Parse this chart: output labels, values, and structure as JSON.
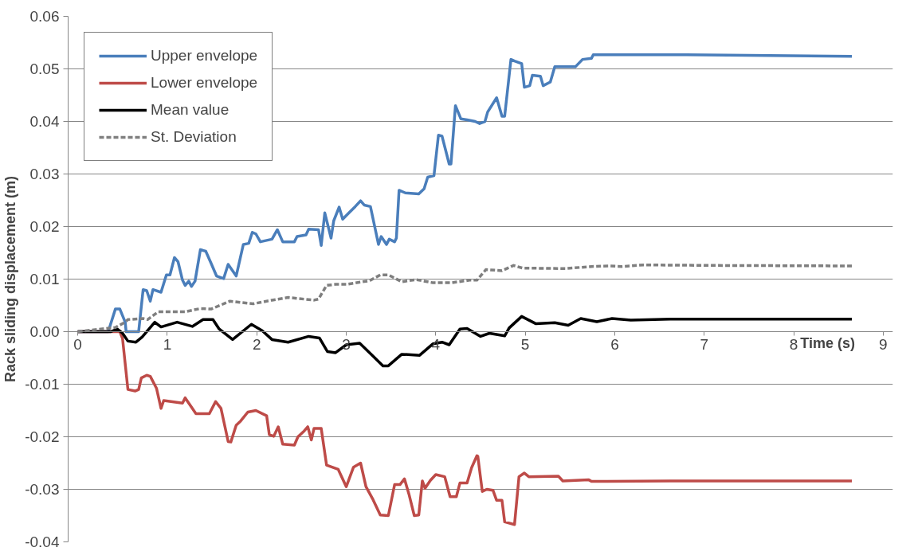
{
  "chart_data": {
    "type": "line",
    "xlabel": "Time (s)",
    "ylabel": "Rack sliding displacement (m)",
    "xlim": [
      0,
      9
    ],
    "xticks": [
      0,
      1,
      2,
      3,
      4,
      5,
      6,
      7,
      8,
      9
    ],
    "ylim": [
      -0.04,
      0.06
    ],
    "yticks": [
      {
        "value": -0.04,
        "label": "-0.04"
      },
      {
        "value": -0.03,
        "label": "-0.03"
      },
      {
        "value": -0.02,
        "label": "-0.02"
      },
      {
        "value": -0.01,
        "label": "-0.01"
      },
      {
        "value": 0,
        "label": "0.00"
      },
      {
        "value": 0.01,
        "label": "0.01"
      },
      {
        "value": 0.02,
        "label": "0.02"
      },
      {
        "value": 0.03,
        "label": "0.03"
      },
      {
        "value": 0.04,
        "label": "0.04"
      },
      {
        "value": 0.05,
        "label": "0.05"
      },
      {
        "value": 0.06,
        "label": "0.06"
      }
    ],
    "grid": "y",
    "legend": "top left",
    "marker": "none",
    "series": [
      {
        "name": "Upper envelope",
        "color": "#4a7ebb",
        "line_style": "solid",
        "x": [
          0,
          0.34,
          0.42,
          0.47,
          0.53,
          0.54,
          0.68,
          0.73,
          0.77,
          0.81,
          0.84,
          0.93,
          0.99,
          1.03,
          1.08,
          1.12,
          1.17,
          1.2,
          1.24,
          1.27,
          1.31,
          1.37,
          1.43,
          1.49,
          1.55,
          1.63,
          1.68,
          1.77,
          1.85,
          1.91,
          1.95,
          1.99,
          2.04,
          2.17,
          2.23,
          2.29,
          2.42,
          2.45,
          2.55,
          2.58,
          2.69,
          2.72,
          2.76,
          2.83,
          2.86,
          2.92,
          2.96,
          3.03,
          3.1,
          3.16,
          3.2,
          3.27,
          3.36,
          3.39,
          3.45,
          3.48,
          3.54,
          3.56,
          3.59,
          3.66,
          3.81,
          3.87,
          3.91,
          3.98,
          4.03,
          4.07,
          4.15,
          4.17,
          4.22,
          4.28,
          4.35,
          4.44,
          4.49,
          4.55,
          4.58,
          4.68,
          4.74,
          4.77,
          4.84,
          4.88,
          4.96,
          4.99,
          5.05,
          5.08,
          5.17,
          5.2,
          5.28,
          5.33,
          5.56,
          5.64,
          5.74,
          5.76,
          6.8,
          8.65
        ],
        "values": [
          0,
          0,
          0.0043,
          0.0043,
          0.0018,
          0,
          0,
          0.008,
          0.0078,
          0.0058,
          0.008,
          0.0075,
          0.0108,
          0.0108,
          0.0141,
          0.0133,
          0.0098,
          0.0088,
          0.0096,
          0.0086,
          0.0096,
          0.0156,
          0.0153,
          0.013,
          0.0106,
          0.0101,
          0.0128,
          0.0106,
          0.0166,
          0.0168,
          0.0189,
          0.0186,
          0.0171,
          0.0176,
          0.0194,
          0.0171,
          0.0171,
          0.0181,
          0.0184,
          0.0195,
          0.0194,
          0.0164,
          0.0226,
          0.0178,
          0.0211,
          0.0237,
          0.0214,
          0.0226,
          0.0238,
          0.0249,
          0.0241,
          0.0238,
          0.0166,
          0.0181,
          0.0166,
          0.0176,
          0.0171,
          0.0178,
          0.0269,
          0.0264,
          0.0262,
          0.0272,
          0.0294,
          0.0297,
          0.0374,
          0.0372,
          0.0319,
          0.0319,
          0.043,
          0.0405,
          0.0403,
          0.04,
          0.0396,
          0.04,
          0.0418,
          0.0445,
          0.041,
          0.041,
          0.0518,
          0.0515,
          0.051,
          0.0465,
          0.0468,
          0.0488,
          0.0486,
          0.0468,
          0.0475,
          0.0504,
          0.0504,
          0.0518,
          0.052,
          0.0527,
          0.0527,
          0.0524
        ]
      },
      {
        "name": "Lower envelope",
        "color": "#be4b48",
        "line_style": "solid",
        "x": [
          0,
          0.37,
          0.47,
          0.5,
          0.56,
          0.64,
          0.68,
          0.71,
          0.77,
          0.81,
          0.88,
          0.93,
          0.96,
          1.17,
          1.2,
          1.32,
          1.47,
          1.54,
          1.6,
          1.68,
          1.71,
          1.77,
          1.82,
          1.9,
          1.99,
          2.11,
          2.14,
          2.19,
          2.24,
          2.29,
          2.42,
          2.46,
          2.53,
          2.57,
          2.61,
          2.64,
          2.72,
          2.78,
          2.91,
          3.0,
          3.08,
          3.16,
          3.22,
          3.3,
          3.38,
          3.47,
          3.54,
          3.6,
          3.65,
          3.7,
          3.76,
          3.81,
          3.85,
          3.88,
          3.94,
          4.0,
          4.1,
          4.16,
          4.23,
          4.27,
          4.35,
          4.4,
          4.46,
          4.47,
          4.52,
          4.57,
          4.64,
          4.68,
          4.74,
          4.77,
          4.88,
          4.93,
          4.99,
          5.04,
          5.37,
          5.42,
          5.71,
          5.74,
          6.62,
          8.65
        ],
        "values": [
          0,
          0,
          0,
          -0.0013,
          -0.011,
          -0.0113,
          -0.011,
          -0.0088,
          -0.0083,
          -0.0085,
          -0.0108,
          -0.0146,
          -0.0131,
          -0.0136,
          -0.0126,
          -0.0156,
          -0.0156,
          -0.0133,
          -0.0146,
          -0.0209,
          -0.021,
          -0.0178,
          -0.017,
          -0.0153,
          -0.015,
          -0.016,
          -0.0196,
          -0.0199,
          -0.0181,
          -0.0214,
          -0.0216,
          -0.02,
          -0.0189,
          -0.0181,
          -0.0206,
          -0.0184,
          -0.0184,
          -0.0254,
          -0.0262,
          -0.0295,
          -0.0258,
          -0.025,
          -0.0295,
          -0.032,
          -0.0349,
          -0.035,
          -0.0291,
          -0.0291,
          -0.028,
          -0.0309,
          -0.035,
          -0.0349,
          -0.0284,
          -0.0298,
          -0.0283,
          -0.0272,
          -0.0276,
          -0.0314,
          -0.0314,
          -0.0288,
          -0.0288,
          -0.0259,
          -0.0236,
          -0.0237,
          -0.0304,
          -0.03,
          -0.0302,
          -0.0321,
          -0.0321,
          -0.0362,
          -0.0367,
          -0.0276,
          -0.0269,
          -0.0276,
          -0.0275,
          -0.0284,
          -0.0282,
          -0.0285,
          -0.0284,
          -0.0284
        ]
      },
      {
        "name": "Mean value",
        "color": "#000000",
        "line_style": "solid",
        "x": [
          0,
          0.37,
          0.44,
          0.5,
          0.56,
          0.65,
          0.72,
          0.86,
          0.93,
          1.11,
          1.28,
          1.4,
          1.51,
          1.58,
          1.73,
          1.94,
          2.06,
          2.17,
          2.35,
          2.58,
          2.7,
          2.79,
          2.88,
          3.0,
          3.15,
          3.29,
          3.41,
          3.47,
          3.62,
          3.82,
          3.97,
          4.07,
          4.15,
          4.27,
          4.35,
          4.5,
          4.6,
          4.77,
          4.82,
          4.96,
          5.12,
          5.33,
          5.48,
          5.62,
          5.8,
          5.97,
          6.18,
          6.62,
          8.65
        ],
        "values": [
          0,
          0,
          0.0005,
          -0.0003,
          -0.0018,
          -0.002,
          -0.001,
          0.0018,
          0.0009,
          0.0018,
          0.001,
          0.0023,
          0.0023,
          0.0005,
          -0.0015,
          0.0014,
          0.0002,
          -0.0015,
          -0.002,
          -0.0009,
          -0.0012,
          -0.0038,
          -0.004,
          -0.0025,
          -0.0022,
          -0.0045,
          -0.0065,
          -0.0065,
          -0.0043,
          -0.0045,
          -0.0023,
          -0.002,
          -0.0025,
          0.0005,
          0.0006,
          -0.0009,
          -0.0003,
          -0.0008,
          0.0007,
          0.0029,
          0.0015,
          0.0017,
          0.0012,
          0.0025,
          0.0019,
          0.0025,
          0.0022,
          0.0024,
          0.0024
        ]
      },
      {
        "name": "St. Deviation",
        "color": "#7f7f7f",
        "line_style": "dashed",
        "x": [
          0,
          0.42,
          0.53,
          0.56,
          0.73,
          0.78,
          0.9,
          1.2,
          1.37,
          1.49,
          1.7,
          1.96,
          2.17,
          2.35,
          2.64,
          2.69,
          2.78,
          2.88,
          3.0,
          3.26,
          3.38,
          3.47,
          3.62,
          3.78,
          3.97,
          4.17,
          4.38,
          4.46,
          4.56,
          4.74,
          4.87,
          4.97,
          5.45,
          5.74,
          5.95,
          6.08,
          6.32,
          7.1,
          8.65
        ],
        "values": [
          0,
          0.0008,
          0.0018,
          0.0023,
          0.0025,
          0.0023,
          0.0038,
          0.0038,
          0.0044,
          0.0043,
          0.0058,
          0.0053,
          0.006,
          0.0065,
          0.006,
          0.0062,
          0.0088,
          0.009,
          0.009,
          0.0097,
          0.0108,
          0.0108,
          0.0095,
          0.0099,
          0.0093,
          0.0093,
          0.0098,
          0.0098,
          0.0118,
          0.0116,
          0.0126,
          0.0121,
          0.012,
          0.0124,
          0.0125,
          0.0124,
          0.0127,
          0.0126,
          0.0125
        ]
      }
    ]
  }
}
